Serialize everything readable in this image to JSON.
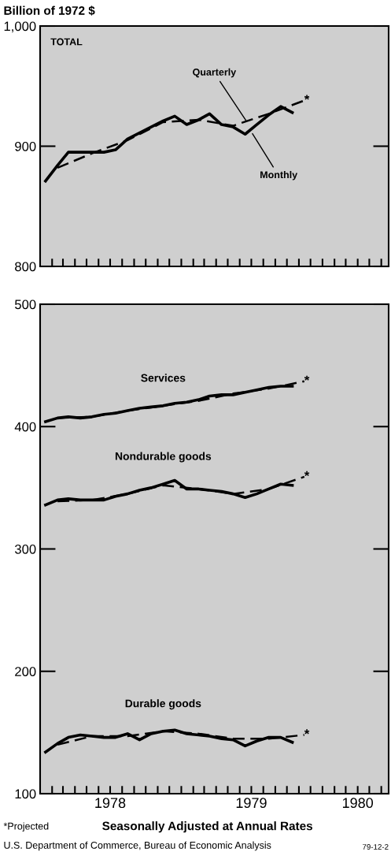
{
  "chart_data": [
    {
      "type": "line",
      "ylabel": "Billion of 1972 $",
      "xlim": [
        "1978-01-01",
        "1980-06-20"
      ],
      "ylim": [
        800,
        1000
      ],
      "yticks": [
        800,
        900,
        {
          "value": 1000,
          "label": "1,000"
        }
      ],
      "xticks": [
        {
          "value": "1978-02-01",
          "label": null
        },
        {
          "value": "1978-03-01",
          "label": null
        },
        {
          "value": "1978-04-01",
          "label": null
        },
        {
          "value": "1978-05-01",
          "label": null
        },
        {
          "value": "1978-06-01",
          "label": null
        },
        {
          "value": "1978-07-01",
          "label": null
        },
        {
          "value": "1978-08-01",
          "label": null
        },
        {
          "value": "1978-09-01",
          "label": null
        },
        {
          "value": "1978-10-01",
          "label": null
        },
        {
          "value": "1978-11-01",
          "label": null
        },
        {
          "value": "1978-12-01",
          "label": null
        },
        {
          "value": "1979-01-01",
          "label": null
        },
        {
          "value": "1979-02-01",
          "label": null
        },
        {
          "value": "1979-03-01",
          "label": null
        },
        {
          "value": "1979-04-01",
          "label": null
        },
        {
          "value": "1979-05-01",
          "label": null
        },
        {
          "value": "1979-06-01",
          "label": null
        },
        {
          "value": "1979-07-01",
          "label": null
        },
        {
          "value": "1979-08-01",
          "label": null
        },
        {
          "value": "1979-09-01",
          "label": null
        },
        {
          "value": "1979-10-01",
          "label": null
        },
        {
          "value": "1979-11-01",
          "label": null
        },
        {
          "value": "1979-12-01",
          "label": null
        },
        {
          "value": "1980-01-01",
          "label": null
        },
        {
          "value": "1980-02-01",
          "label": null
        },
        {
          "value": "1980-03-01",
          "label": null
        },
        {
          "value": "1980-04-01",
          "label": null
        },
        {
          "value": "1980-05-01",
          "label": null
        },
        {
          "value": "1980-06-01",
          "label": null
        }
      ],
      "tick_labels": "y",
      "grid": false,
      "legend": false,
      "series": [
        {
          "color": "#000000",
          "line_style": "solid",
          "x": [
            "1978-01-15",
            "1978-02-15",
            "1978-03-15",
            "1978-04-15",
            "1978-05-15",
            "1978-06-15",
            "1978-07-15",
            "1978-08-15",
            "1978-09-15",
            "1978-10-15",
            "1978-11-15",
            "1978-12-15",
            "1979-01-15",
            "1979-02-15",
            "1979-03-15",
            "1979-04-15",
            "1979-05-15",
            "1979-06-15",
            "1979-07-15",
            "1979-08-15",
            "1979-09-15",
            "1979-10-15"
          ],
          "values": [
            871,
            884,
            895,
            895,
            895,
            895,
            897,
            906,
            911,
            916,
            921,
            925,
            918,
            922,
            927,
            918,
            916,
            910,
            918,
            926,
            933,
            928
          ]
        },
        {
          "color": "#000000",
          "line_style": "dashed",
          "x": [
            "1978-02-15",
            "1978-05-15",
            "1978-08-15",
            "1978-11-15",
            "1979-02-15",
            "1979-05-15",
            "1979-08-15",
            "1979-11-15"
          ],
          "values": [
            882,
            894,
            905,
            920,
            922,
            917,
            927,
            938
          ]
        }
      ],
      "annotations": [
        "TOTAL",
        {
          "text": "Quarterly",
          "x": "1979-06-20",
          "y": 920
        },
        {
          "text": "Monthly",
          "x": "1979-07-01",
          "y": 912
        },
        {
          "text": "*",
          "x": "1979-11-15",
          "y": 938
        }
      ]
    },
    {
      "type": "line",
      "xlabel": "Seasonally Adjusted at Annual Rates",
      "xlim": [
        "1978-01-01",
        "1980-06-20"
      ],
      "ylim": [
        100,
        500
      ],
      "yticks": [
        100,
        200,
        300,
        400,
        500
      ],
      "xticks": [
        {
          "value": "1978-02-01",
          "label": null
        },
        {
          "value": "1978-03-01",
          "label": null
        },
        {
          "value": "1978-04-01",
          "label": null
        },
        {
          "value": "1978-05-01",
          "label": null
        },
        {
          "value": "1978-06-01",
          "label": null
        },
        {
          "value": "1978-07-01",
          "label": "1978"
        },
        {
          "value": "1978-08-01",
          "label": null
        },
        {
          "value": "1978-09-01",
          "label": null
        },
        {
          "value": "1978-10-01",
          "label": null
        },
        {
          "value": "1978-11-01",
          "label": null
        },
        {
          "value": "1978-12-01",
          "label": null
        },
        {
          "value": "1979-01-01",
          "label": null
        },
        {
          "value": "1979-02-01",
          "label": null
        },
        {
          "value": "1979-03-01",
          "label": null
        },
        {
          "value": "1979-04-01",
          "label": null
        },
        {
          "value": "1979-05-01",
          "label": null
        },
        {
          "value": "1979-06-01",
          "label": null
        },
        {
          "value": "1979-07-01",
          "label": "1979"
        },
        {
          "value": "1979-08-01",
          "label": null
        },
        {
          "value": "1979-09-01",
          "label": null
        },
        {
          "value": "1979-10-01",
          "label": null
        },
        {
          "value": "1979-11-01",
          "label": null
        },
        {
          "value": "1979-12-01",
          "label": null
        },
        {
          "value": "1980-01-01",
          "label": null
        },
        {
          "value": "1980-02-01",
          "label": null
        },
        {
          "value": "1980-03-01",
          "label": null
        },
        {
          "value": "1980-04-01",
          "label": "1980"
        },
        {
          "value": "1980-05-01",
          "label": null
        },
        {
          "value": "1980-06-01",
          "label": null
        }
      ],
      "grid": false,
      "legend": false,
      "series": [
        {
          "name": "Services",
          "color": "#000000",
          "line_style": "solid",
          "x": [
            "1978-01-15",
            "1978-02-15",
            "1978-03-15",
            "1978-04-15",
            "1978-05-15",
            "1978-06-15",
            "1978-07-15",
            "1978-08-15",
            "1978-09-15",
            "1978-10-15",
            "1978-11-15",
            "1978-12-15",
            "1979-01-15",
            "1979-02-15",
            "1979-03-15",
            "1979-04-15",
            "1979-05-15",
            "1979-06-15",
            "1979-07-15",
            "1979-08-15",
            "1979-09-15",
            "1979-10-15"
          ],
          "values": [
            404,
            407,
            408,
            407,
            408,
            410,
            411,
            413,
            415,
            416,
            417,
            419,
            420,
            422,
            425,
            426,
            426,
            428,
            430,
            432,
            433,
            433
          ]
        },
        {
          "color": "#000000",
          "line_style": "dashed",
          "x": [
            "1978-02-15",
            "1978-05-15",
            "1978-08-15",
            "1978-11-15",
            "1979-02-15",
            "1979-05-15",
            "1979-08-15",
            "1979-11-15"
          ],
          "values": [
            407,
            408,
            413,
            417,
            421,
            427,
            431,
            437
          ]
        },
        {
          "name": "Nondurable goods",
          "color": "#000000",
          "line_style": "solid",
          "x": [
            "1978-01-15",
            "1978-02-15",
            "1978-03-15",
            "1978-04-15",
            "1978-05-15",
            "1978-06-15",
            "1978-07-15",
            "1978-08-15",
            "1978-09-15",
            "1978-10-15",
            "1978-11-15",
            "1978-12-15",
            "1979-01-15",
            "1979-02-15",
            "1979-03-15",
            "1979-04-15",
            "1979-05-15",
            "1979-06-15",
            "1979-07-15",
            "1979-08-15",
            "1979-09-15",
            "1979-10-15"
          ],
          "values": [
            336,
            340,
            341,
            340,
            340,
            340,
            343,
            345,
            348,
            350,
            353,
            356,
            349,
            349,
            348,
            347,
            345,
            342,
            345,
            349,
            353,
            352
          ]
        },
        {
          "color": "#000000",
          "line_style": "dashed",
          "x": [
            "1978-02-15",
            "1978-05-15",
            "1978-08-15",
            "1978-11-15",
            "1979-02-15",
            "1979-05-15",
            "1979-08-15",
            "1979-11-15"
          ],
          "values": [
            339,
            340,
            345,
            352,
            349,
            345,
            349,
            359
          ]
        },
        {
          "name": "Durable goods",
          "color": "#000000",
          "line_style": "solid",
          "x": [
            "1978-01-15",
            "1978-02-15",
            "1978-03-15",
            "1978-04-15",
            "1978-05-15",
            "1978-06-15",
            "1978-07-15",
            "1978-08-15",
            "1978-09-15",
            "1978-10-15",
            "1978-11-15",
            "1978-12-15",
            "1979-01-15",
            "1979-02-15",
            "1979-03-15",
            "1979-04-15",
            "1979-05-15",
            "1979-06-15",
            "1979-07-15",
            "1979-08-15",
            "1979-09-15",
            "1979-10-15"
          ],
          "values": [
            134,
            141,
            146,
            148,
            147,
            146,
            146,
            149,
            144,
            149,
            151,
            152,
            149,
            148,
            147,
            145,
            144,
            139,
            143,
            146,
            146,
            142
          ]
        },
        {
          "color": "#000000",
          "line_style": "dashed",
          "x": [
            "1978-02-15",
            "1978-05-15",
            "1978-08-15",
            "1978-11-15",
            "1979-02-15",
            "1979-05-15",
            "1979-08-15",
            "1979-11-15"
          ],
          "values": [
            140,
            147,
            147,
            151,
            149,
            145,
            145,
            148
          ]
        }
      ],
      "annotations": [
        {
          "text": "*",
          "x": "1979-11-15",
          "y": 437
        },
        {
          "text": "*",
          "x": "1979-11-15",
          "y": 359
        },
        {
          "text": "*",
          "x": "1979-11-15",
          "y": 148
        },
        "*Projected",
        "U.S. Department of Commerce, Bureau of Economic Analysis",
        "79-12-2"
      ]
    }
  ]
}
